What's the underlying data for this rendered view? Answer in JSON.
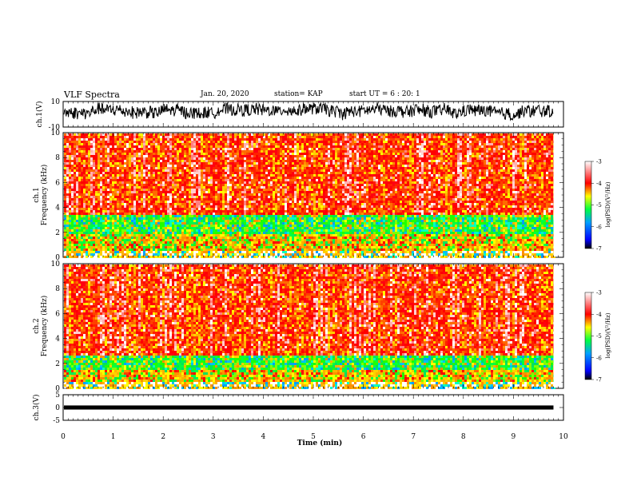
{
  "header": {
    "title": "VLF Spectra",
    "date": "Jan. 20, 2020",
    "station": "station= KAP",
    "start": "start  UT =   6 : 20: 1"
  },
  "colorbar": {
    "label": "log(PSD)(V²/Hz)",
    "ticks": [
      "-3",
      "-4",
      "-5",
      "-6",
      "-7"
    ],
    "range": [
      -7,
      -3
    ],
    "colors": [
      "#000000",
      "#0000ff",
      "#00a0ff",
      "#00ff40",
      "#ffff00",
      "#ff0000",
      "#ffffff"
    ]
  },
  "chart_data": [
    {
      "type": "line",
      "panel": "ch1-waveform",
      "ylabel": "ch.1(V)",
      "ylim": [
        -10,
        10
      ],
      "yticks": [
        "10",
        "-10"
      ],
      "xlim": [
        0,
        10
      ],
      "x_extent_min": 9.8,
      "baseline_v": 3,
      "amplitude_v": 6,
      "color": "#000000"
    },
    {
      "type": "heatmap",
      "panel": "ch1-spectrogram",
      "ylabel": "ch.1\nFrequency  (kHz)",
      "ylim": [
        0,
        10
      ],
      "yticks": [
        "0",
        "2",
        "4",
        "6",
        "8",
        "10"
      ],
      "xlim": [
        0,
        10
      ],
      "bands_khz": [
        {
          "from": 0,
          "to": 0.6,
          "level": "mixed"
        },
        {
          "from": 0.6,
          "to": 2.0,
          "level": "yellow-orange"
        },
        {
          "from": 2.0,
          "to": 3.5,
          "level": "green-cyan"
        },
        {
          "from": 3.5,
          "to": 10,
          "level": "red-white"
        }
      ]
    },
    {
      "type": "heatmap",
      "panel": "ch2-spectrogram",
      "ylabel": "ch.2\nFrequency  (kHz)",
      "ylim": [
        0,
        10
      ],
      "yticks": [
        "0",
        "2",
        "4",
        "6",
        "8",
        "10"
      ],
      "xlim": [
        0,
        10
      ],
      "bands_khz": [
        {
          "from": 0,
          "to": 0.6,
          "level": "mixed"
        },
        {
          "from": 0.6,
          "to": 2.8,
          "level": "green-yellow"
        },
        {
          "from": 2.8,
          "to": 10,
          "level": "red-white"
        }
      ]
    },
    {
      "type": "line",
      "panel": "ch3-waveform",
      "ylabel": "ch.3(V)",
      "ylim": [
        -5,
        5
      ],
      "yticks": [
        "5",
        "0",
        "-5"
      ],
      "xlim": [
        0,
        10
      ],
      "x_extent_min": 9.8,
      "band_v": [
        -0.8,
        0.8
      ],
      "color": "#000000"
    }
  ],
  "xaxis": {
    "label": "Time  (min)",
    "ticks": [
      "0",
      "1",
      "2",
      "3",
      "4",
      "5",
      "6",
      "7",
      "8",
      "9",
      "10"
    ],
    "range": [
      0,
      10
    ]
  }
}
